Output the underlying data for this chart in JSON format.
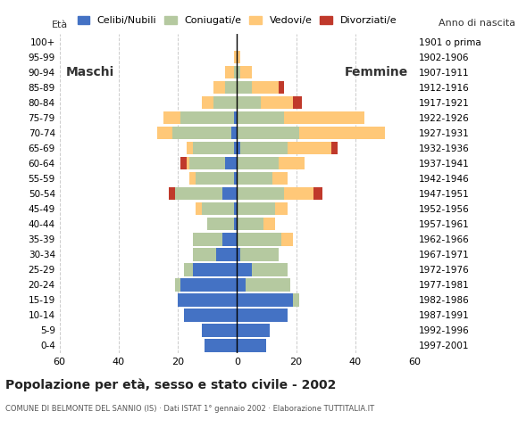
{
  "age_groups": [
    "0-4",
    "5-9",
    "10-14",
    "15-19",
    "20-24",
    "25-29",
    "30-34",
    "35-39",
    "40-44",
    "45-49",
    "50-54",
    "55-59",
    "60-64",
    "65-69",
    "70-74",
    "75-79",
    "80-84",
    "85-89",
    "90-94",
    "95-99",
    "100+"
  ],
  "birth_years": [
    "1997-2001",
    "1992-1996",
    "1987-1991",
    "1982-1986",
    "1977-1981",
    "1972-1976",
    "1967-1971",
    "1962-1966",
    "1957-1961",
    "1952-1956",
    "1947-1951",
    "1942-1946",
    "1937-1941",
    "1932-1936",
    "1927-1931",
    "1922-1926",
    "1917-1921",
    "1912-1916",
    "1907-1911",
    "1902-1906",
    "1901 o prima"
  ],
  "colors": {
    "celibe": "#4472c4",
    "coniugato": "#b5c9a0",
    "vedovo": "#ffc878",
    "divorziato": "#c0392b"
  },
  "males": {
    "celibe": [
      11,
      12,
      18,
      20,
      19,
      15,
      7,
      5,
      1,
      1,
      5,
      1,
      4,
      1,
      2,
      1,
      0,
      0,
      0,
      0,
      0
    ],
    "coniugato": [
      0,
      0,
      0,
      0,
      2,
      3,
      8,
      10,
      9,
      11,
      16,
      13,
      12,
      14,
      20,
      18,
      8,
      4,
      1,
      0,
      0
    ],
    "vedovo": [
      0,
      0,
      0,
      0,
      0,
      0,
      0,
      0,
      0,
      2,
      0,
      2,
      1,
      2,
      5,
      6,
      4,
      4,
      3,
      1,
      0
    ],
    "divorziato": [
      0,
      0,
      0,
      0,
      0,
      0,
      0,
      0,
      0,
      0,
      2,
      0,
      2,
      0,
      0,
      0,
      0,
      0,
      0,
      0,
      0
    ]
  },
  "females": {
    "celibe": [
      10,
      11,
      17,
      19,
      3,
      5,
      1,
      0,
      0,
      0,
      0,
      0,
      0,
      1,
      0,
      0,
      0,
      0,
      0,
      0,
      0
    ],
    "coniugato": [
      0,
      0,
      0,
      2,
      15,
      12,
      13,
      15,
      9,
      13,
      16,
      12,
      14,
      16,
      21,
      16,
      8,
      5,
      1,
      0,
      0
    ],
    "vedovo": [
      0,
      0,
      0,
      0,
      0,
      0,
      0,
      4,
      4,
      4,
      10,
      5,
      9,
      15,
      29,
      27,
      11,
      9,
      4,
      1,
      0
    ],
    "divorziato": [
      0,
      0,
      0,
      0,
      0,
      0,
      0,
      0,
      0,
      0,
      3,
      0,
      0,
      2,
      0,
      0,
      3,
      2,
      0,
      0,
      0
    ]
  },
  "title": "Popolazione per età, sesso e stato civile - 2002",
  "subtitle": "COMUNE DI BELMONTE DEL SANNIO (IS) · Dati ISTAT 1° gennaio 2002 · Elaborazione TUTTITALIA.IT",
  "xlabel_left": "Età",
  "xlabel_right": "Anno di nascita",
  "label_maschi": "Maschi",
  "label_femmine": "Femmine",
  "legend_labels": [
    "Celibi/Nubili",
    "Coniugati/e",
    "Vedovi/e",
    "Divorziati/e"
  ],
  "xlim": 60,
  "background_color": "#ffffff"
}
